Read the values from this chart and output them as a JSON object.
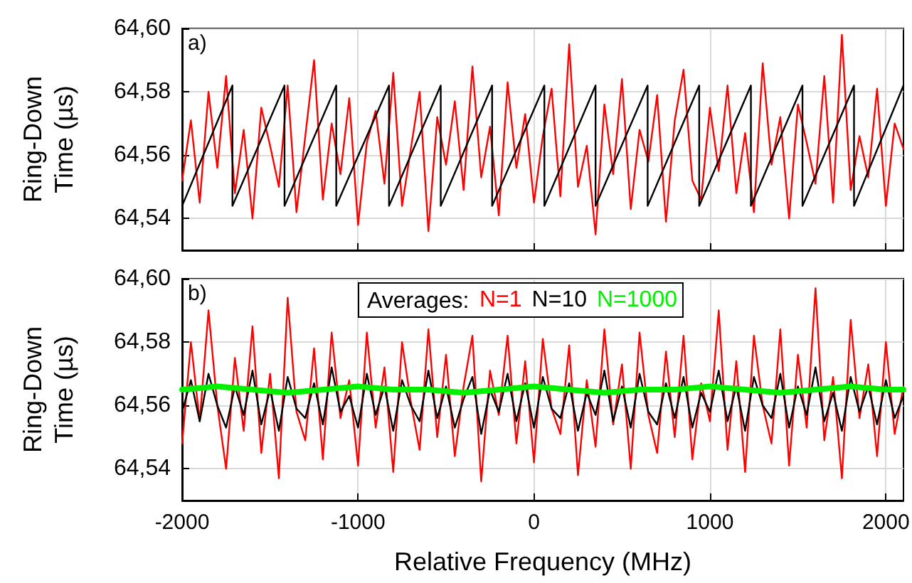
{
  "chart_data": [
    {
      "type": "line",
      "ylabel": "Ring-Down Time (µs)",
      "annotations": [
        "a)"
      ],
      "xlim": [
        -2000,
        2100
      ],
      "xticks": [
        -2000,
        -1000,
        0,
        1000,
        2000
      ],
      "ylim": [
        64.53,
        64.6
      ],
      "yticks": [
        {
          "value": 64.54,
          "label": "64,54"
        },
        {
          "value": 64.56,
          "label": "64,56"
        },
        {
          "value": 64.58,
          "label": "64,58"
        },
        {
          "value": 64.6,
          "label": "64,60"
        }
      ],
      "grid": true,
      "tick_labels": "y",
      "marker": "none",
      "line_style": "solid",
      "series": [
        {
          "color": "#ff0000",
          "x": [
            -2000,
            -1950,
            -1900,
            -1850,
            -1800,
            -1750,
            -1700,
            -1650,
            -1600,
            -1550,
            -1500,
            -1450,
            -1400,
            -1350,
            -1300,
            -1250,
            -1200,
            -1150,
            -1100,
            -1050,
            -1000,
            -950,
            -900,
            -850,
            -800,
            -750,
            -700,
            -650,
            -600,
            -550,
            -500,
            -450,
            -400,
            -350,
            -300,
            -250,
            -200,
            -150,
            -100,
            -50,
            0,
            50,
            100,
            150,
            200,
            250,
            300,
            350,
            400,
            450,
            500,
            550,
            600,
            650,
            700,
            750,
            800,
            850,
            900,
            950,
            1000,
            1050,
            1100,
            1150,
            1200,
            1250,
            1300,
            1350,
            1400,
            1450,
            1500,
            1550,
            1600,
            1650,
            1700,
            1750,
            1800,
            1850,
            1900,
            1950,
            2000,
            2050,
            2100
          ],
          "values": [
            64.552,
            64.571,
            64.545,
            64.58,
            64.556,
            64.585,
            64.548,
            64.568,
            64.54,
            64.575,
            64.563,
            64.55,
            64.582,
            64.542,
            64.566,
            64.59,
            64.546,
            64.57,
            64.554,
            64.578,
            64.538,
            64.564,
            64.574,
            64.551,
            64.586,
            64.544,
            64.562,
            64.58,
            64.536,
            64.572,
            64.557,
            64.577,
            64.549,
            64.588,
            64.553,
            64.569,
            64.541,
            64.583,
            64.556,
            64.573,
            64.545,
            64.566,
            64.581,
            64.547,
            64.595,
            64.55,
            64.563,
            64.535,
            64.576,
            64.554,
            64.584,
            64.543,
            64.568,
            64.558,
            64.579,
            64.539,
            64.571,
            64.587,
            64.552,
            64.546,
            64.575,
            64.555,
            64.582,
            64.548,
            64.567,
            64.542,
            64.589,
            64.557,
            64.572,
            64.54,
            64.576,
            64.564,
            64.551,
            64.585,
            64.545,
            64.598,
            64.549,
            64.566,
            64.553,
            64.581,
            64.544,
            64.57,
            64.562
          ]
        },
        {
          "color": "#000000",
          "x": [
            -2000,
            -1714,
            -1714,
            -1418,
            -1418,
            -1124,
            -1124,
            -824,
            -824,
            -530,
            -530,
            -238,
            -238,
            59,
            59,
            350,
            350,
            646,
            646,
            939,
            939,
            1233,
            1233,
            1526,
            1526,
            1819,
            1819,
            2100
          ],
          "values": [
            64.544,
            64.582,
            64.544,
            64.582,
            64.544,
            64.582,
            64.544,
            64.582,
            64.544,
            64.582,
            64.544,
            64.582,
            64.544,
            64.582,
            64.544,
            64.582,
            64.544,
            64.582,
            64.544,
            64.582,
            64.544,
            64.582,
            64.544,
            64.582,
            64.544,
            64.582,
            64.544,
            64.582
          ]
        }
      ]
    },
    {
      "type": "line",
      "ylabel": "Ring-Down Time (µs)",
      "xlabel": "Relative Frequency (MHz)",
      "annotations": [
        "b)"
      ],
      "legend_title": "Averages:",
      "legend": "top",
      "xlim": [
        -2000,
        2100
      ],
      "xticks": [
        -2000,
        -1000,
        0,
        1000,
        2000
      ],
      "ylim": [
        64.53,
        64.6
      ],
      "yticks": [
        {
          "value": 64.54,
          "label": "64,54"
        },
        {
          "value": 64.56,
          "label": "64,56"
        },
        {
          "value": 64.58,
          "label": "64,58"
        },
        {
          "value": 64.6,
          "label": "64,60"
        }
      ],
      "grid": true,
      "marker": "none",
      "line_style": "solid",
      "x": [
        -2000,
        -1950,
        -1900,
        -1850,
        -1800,
        -1750,
        -1700,
        -1650,
        -1600,
        -1550,
        -1500,
        -1450,
        -1400,
        -1350,
        -1300,
        -1250,
        -1200,
        -1150,
        -1100,
        -1050,
        -1000,
        -950,
        -900,
        -850,
        -800,
        -750,
        -700,
        -650,
        -600,
        -550,
        -500,
        -450,
        -400,
        -350,
        -300,
        -250,
        -200,
        -150,
        -100,
        -50,
        0,
        50,
        100,
        150,
        200,
        250,
        300,
        350,
        400,
        450,
        500,
        550,
        600,
        650,
        700,
        750,
        800,
        850,
        900,
        950,
        1000,
        1050,
        1100,
        1150,
        1200,
        1250,
        1300,
        1350,
        1400,
        1450,
        1500,
        1550,
        1600,
        1650,
        1700,
        1750,
        1800,
        1850,
        1900,
        1950,
        2000,
        2050,
        2100
      ],
      "series": [
        {
          "name": "N=1",
          "color": "#ff0000",
          "values": [
            64.548,
            64.58,
            64.555,
            64.59,
            64.56,
            64.54,
            64.575,
            64.552,
            64.585,
            64.545,
            64.57,
            64.537,
            64.594,
            64.558,
            64.549,
            64.578,
            64.543,
            64.583,
            64.556,
            64.568,
            64.541,
            64.583,
            64.553,
            64.572,
            64.539,
            64.58,
            64.561,
            64.546,
            64.584,
            64.55,
            64.576,
            64.544,
            64.566,
            64.582,
            64.536,
            64.571,
            64.557,
            64.582,
            64.548,
            64.574,
            64.542,
            64.581,
            64.559,
            64.551,
            64.579,
            64.538,
            64.568,
            64.547,
            64.584,
            64.554,
            64.573,
            64.54,
            64.583,
            64.557,
            64.545,
            64.577,
            64.55,
            64.582,
            64.543,
            64.567,
            64.555,
            64.59,
            64.546,
            64.574,
            64.539,
            64.582,
            64.56,
            64.548,
            64.584,
            64.541,
            64.576,
            64.553,
            64.597,
            64.549,
            64.569,
            64.537,
            64.587,
            64.556,
            64.573,
            64.544,
            64.58,
            64.551,
            64.566
          ]
        },
        {
          "name": "N=10",
          "color": "#000000",
          "values": [
            64.558,
            64.568,
            64.555,
            64.57,
            64.56,
            64.553,
            64.566,
            64.557,
            64.571,
            64.554,
            64.565,
            64.552,
            64.569,
            64.559,
            64.556,
            64.567,
            64.554,
            64.572,
            64.558,
            64.563,
            64.553,
            64.57,
            64.557,
            64.566,
            64.552,
            64.568,
            64.56,
            64.555,
            64.571,
            64.556,
            64.566,
            64.553,
            64.562,
            64.569,
            64.551,
            64.565,
            64.558,
            64.57,
            64.555,
            64.567,
            64.553,
            64.569,
            64.559,
            64.556,
            64.567,
            64.552,
            64.564,
            64.557,
            64.571,
            64.555,
            64.566,
            64.553,
            64.57,
            64.558,
            64.554,
            64.567,
            64.556,
            64.569,
            64.553,
            64.564,
            64.558,
            64.571,
            64.555,
            64.566,
            64.552,
            64.569,
            64.56,
            64.556,
            64.57,
            64.553,
            64.566,
            64.557,
            64.572,
            64.555,
            64.564,
            64.552,
            64.569,
            64.558,
            64.566,
            64.554,
            64.568,
            64.556,
            64.563
          ]
        },
        {
          "name": "N=1000",
          "color": "#00f000",
          "x": [
            -2000,
            -1800,
            -1600,
            -1400,
            -1200,
            -1000,
            -800,
            -600,
            -400,
            -200,
            0,
            200,
            400,
            600,
            800,
            1000,
            1200,
            1400,
            1600,
            1800,
            2000,
            2100
          ],
          "values": [
            64.565,
            64.566,
            64.565,
            64.564,
            64.565,
            64.566,
            64.565,
            64.565,
            64.564,
            64.565,
            64.566,
            64.565,
            64.564,
            64.565,
            64.565,
            64.566,
            64.565,
            64.564,
            64.565,
            64.566,
            64.565,
            64.565
          ]
        }
      ]
    }
  ]
}
